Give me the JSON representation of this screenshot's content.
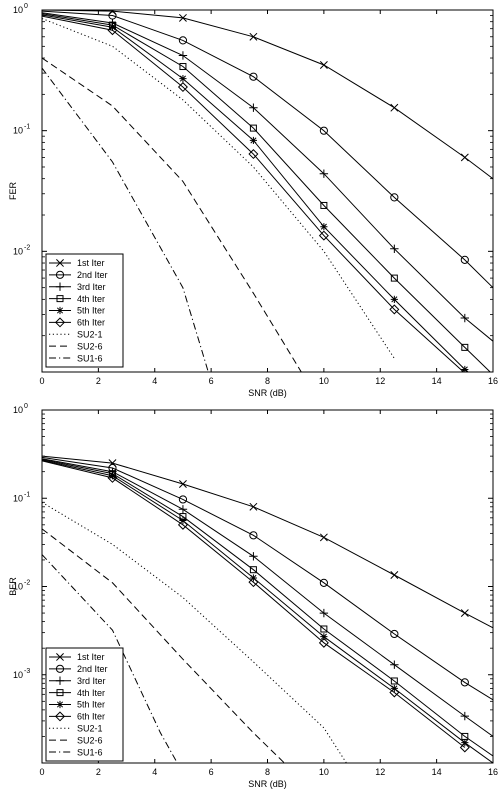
{
  "chart_data": [
    {
      "type": "line",
      "title": "",
      "xlabel": "SNR (dB)",
      "ylabel": "FER",
      "xlim": [
        0,
        16
      ],
      "ylim_log10": [
        -3,
        0
      ],
      "yscale": "log",
      "grid": false,
      "legend_position": "bottom-left",
      "x_ticks": [
        "0",
        "2",
        "4",
        "6",
        "8",
        "10",
        "12",
        "14",
        "16"
      ],
      "y_ticks": [
        {
          "base": "10",
          "exp": "0"
        },
        {
          "base": "10",
          "exp": "-1"
        },
        {
          "base": "10",
          "exp": "-2"
        }
      ],
      "series": [
        {
          "name": "1st Iter",
          "marker": "x",
          "dash": "solid",
          "points": [
            [
              0,
              1.0
            ],
            [
              2.5,
              0.98
            ],
            [
              5,
              0.86
            ],
            [
              7.5,
              0.6
            ],
            [
              10,
              0.35
            ],
            [
              12.5,
              0.155
            ],
            [
              15,
              0.06
            ],
            [
              16,
              0.04
            ]
          ]
        },
        {
          "name": "2nd Iter",
          "marker": "circle",
          "dash": "solid",
          "points": [
            [
              0,
              0.98
            ],
            [
              2.5,
              0.9
            ],
            [
              5,
              0.56
            ],
            [
              7.5,
              0.28
            ],
            [
              10,
              0.1
            ],
            [
              12.5,
              0.028
            ],
            [
              15,
              0.0085
            ],
            [
              16,
              0.005
            ]
          ]
        },
        {
          "name": "3rd Iter",
          "marker": "plus",
          "dash": "solid",
          "points": [
            [
              0,
              0.95
            ],
            [
              2.5,
              0.78
            ],
            [
              5,
              0.42
            ],
            [
              7.5,
              0.155
            ],
            [
              10,
              0.044
            ],
            [
              12.5,
              0.0105
            ],
            [
              15,
              0.0028
            ],
            [
              16,
              0.0018
            ]
          ]
        },
        {
          "name": "4th Iter",
          "marker": "square",
          "dash": "solid",
          "points": [
            [
              0,
              0.93
            ],
            [
              2.5,
              0.75
            ],
            [
              5,
              0.34
            ],
            [
              7.5,
              0.105
            ],
            [
              10,
              0.024
            ],
            [
              12.5,
              0.006
            ],
            [
              15,
              0.0016
            ],
            [
              16,
              0.00095
            ]
          ]
        },
        {
          "name": "5th Iter",
          "marker": "star",
          "dash": "solid",
          "points": [
            [
              0,
              0.91
            ],
            [
              2.5,
              0.72
            ],
            [
              5,
              0.27
            ],
            [
              7.5,
              0.083
            ],
            [
              10,
              0.016
            ],
            [
              12.5,
              0.004
            ],
            [
              15,
              0.00105
            ]
          ]
        },
        {
          "name": "6th Iter",
          "marker": "diamond",
          "dash": "solid",
          "points": [
            [
              0,
              0.89
            ],
            [
              2.5,
              0.68
            ],
            [
              5,
              0.23
            ],
            [
              7.5,
              0.064
            ],
            [
              10,
              0.0135
            ],
            [
              12.5,
              0.0033
            ],
            [
              15,
              0.00098
            ]
          ]
        },
        {
          "name": "SU2-1",
          "marker": "none",
          "dash": "dotted",
          "points": [
            [
              0,
              0.85
            ],
            [
              2.5,
              0.5
            ],
            [
              5,
              0.18
            ],
            [
              7.5,
              0.05
            ],
            [
              10,
              0.01
            ],
            [
              12.5,
              0.0013
            ]
          ]
        },
        {
          "name": "SU2-6",
          "marker": "none",
          "dash": "dashed",
          "points": [
            [
              0,
              0.4
            ],
            [
              2.5,
              0.16
            ],
            [
              5,
              0.038
            ],
            [
              7.5,
              0.0045
            ],
            [
              9.2,
              0.001
            ]
          ]
        },
        {
          "name": "SU1-6",
          "marker": "none",
          "dash": "dashdot",
          "points": [
            [
              0,
              0.33
            ],
            [
              2.5,
              0.055
            ],
            [
              5,
              0.005
            ],
            [
              5.9,
              0.001
            ]
          ]
        }
      ]
    },
    {
      "type": "line",
      "title": "",
      "xlabel": "SNR (dB)",
      "ylabel": "BER",
      "xlim": [
        0,
        16
      ],
      "ylim_log10": [
        -4,
        0
      ],
      "yscale": "log",
      "grid": false,
      "legend_position": "bottom-left",
      "x_ticks": [
        "0",
        "2",
        "4",
        "6",
        "8",
        "10",
        "12",
        "14",
        "16"
      ],
      "y_ticks": [
        {
          "base": "10",
          "exp": "0"
        },
        {
          "base": "10",
          "exp": "-1"
        },
        {
          "base": "10",
          "exp": "-2"
        },
        {
          "base": "10",
          "exp": "-3"
        }
      ],
      "series": [
        {
          "name": "1st Iter",
          "marker": "x",
          "dash": "solid",
          "points": [
            [
              0,
              0.3
            ],
            [
              2.5,
              0.25
            ],
            [
              5,
              0.145
            ],
            [
              7.5,
              0.08
            ],
            [
              10,
              0.036
            ],
            [
              12.5,
              0.0135
            ],
            [
              15,
              0.005
            ],
            [
              16,
              0.0034
            ]
          ]
        },
        {
          "name": "2nd Iter",
          "marker": "circle",
          "dash": "solid",
          "points": [
            [
              0,
              0.29
            ],
            [
              2.5,
              0.22
            ],
            [
              5,
              0.097
            ],
            [
              7.5,
              0.038
            ],
            [
              10,
              0.011
            ],
            [
              12.5,
              0.0029
            ],
            [
              15,
              0.00082
            ],
            [
              16,
              0.00052
            ]
          ]
        },
        {
          "name": "3rd Iter",
          "marker": "plus",
          "dash": "solid",
          "points": [
            [
              0,
              0.28
            ],
            [
              2.5,
              0.2
            ],
            [
              5,
              0.075
            ],
            [
              7.5,
              0.022
            ],
            [
              10,
              0.005
            ],
            [
              12.5,
              0.0013
            ],
            [
              15,
              0.00034
            ],
            [
              16,
              0.0002
            ]
          ]
        },
        {
          "name": "4th Iter",
          "marker": "square",
          "dash": "solid",
          "points": [
            [
              0,
              0.275
            ],
            [
              2.5,
              0.19
            ],
            [
              5,
              0.062
            ],
            [
              7.5,
              0.0155
            ],
            [
              10,
              0.0033
            ],
            [
              12.5,
              0.00085
            ],
            [
              15,
              0.0002
            ],
            [
              16,
              0.00012
            ]
          ]
        },
        {
          "name": "5th Iter",
          "marker": "star",
          "dash": "solid",
          "points": [
            [
              0,
              0.27
            ],
            [
              2.5,
              0.18
            ],
            [
              5,
              0.056
            ],
            [
              7.5,
              0.0125
            ],
            [
              10,
              0.0027
            ],
            [
              12.5,
              0.0007
            ],
            [
              15,
              0.00017
            ],
            [
              16,
              0.0001
            ]
          ]
        },
        {
          "name": "6th Iter",
          "marker": "diamond",
          "dash": "solid",
          "points": [
            [
              0,
              0.265
            ],
            [
              2.5,
              0.17
            ],
            [
              5,
              0.05
            ],
            [
              7.5,
              0.0112
            ],
            [
              10,
              0.0023
            ],
            [
              12.5,
              0.00063
            ],
            [
              15,
              0.00015
            ]
          ]
        },
        {
          "name": "SU2-1",
          "marker": "none",
          "dash": "dotted",
          "points": [
            [
              0,
              0.09
            ],
            [
              2.5,
              0.03
            ],
            [
              5,
              0.0075
            ],
            [
              7.5,
              0.0014
            ],
            [
              10,
              0.00025
            ],
            [
              10.8,
              0.0001
            ]
          ]
        },
        {
          "name": "SU2-6",
          "marker": "none",
          "dash": "dashed",
          "points": [
            [
              0,
              0.045
            ],
            [
              2.5,
              0.011
            ],
            [
              5,
              0.0015
            ],
            [
              7.5,
              0.00022
            ],
            [
              8.6,
              0.0001
            ]
          ]
        },
        {
          "name": "SU1-6",
          "marker": "none",
          "dash": "dashdot",
          "points": [
            [
              0,
              0.023
            ],
            [
              2.5,
              0.0032
            ],
            [
              4.2,
              0.00022
            ],
            [
              4.8,
              0.0001
            ]
          ]
        }
      ]
    }
  ]
}
